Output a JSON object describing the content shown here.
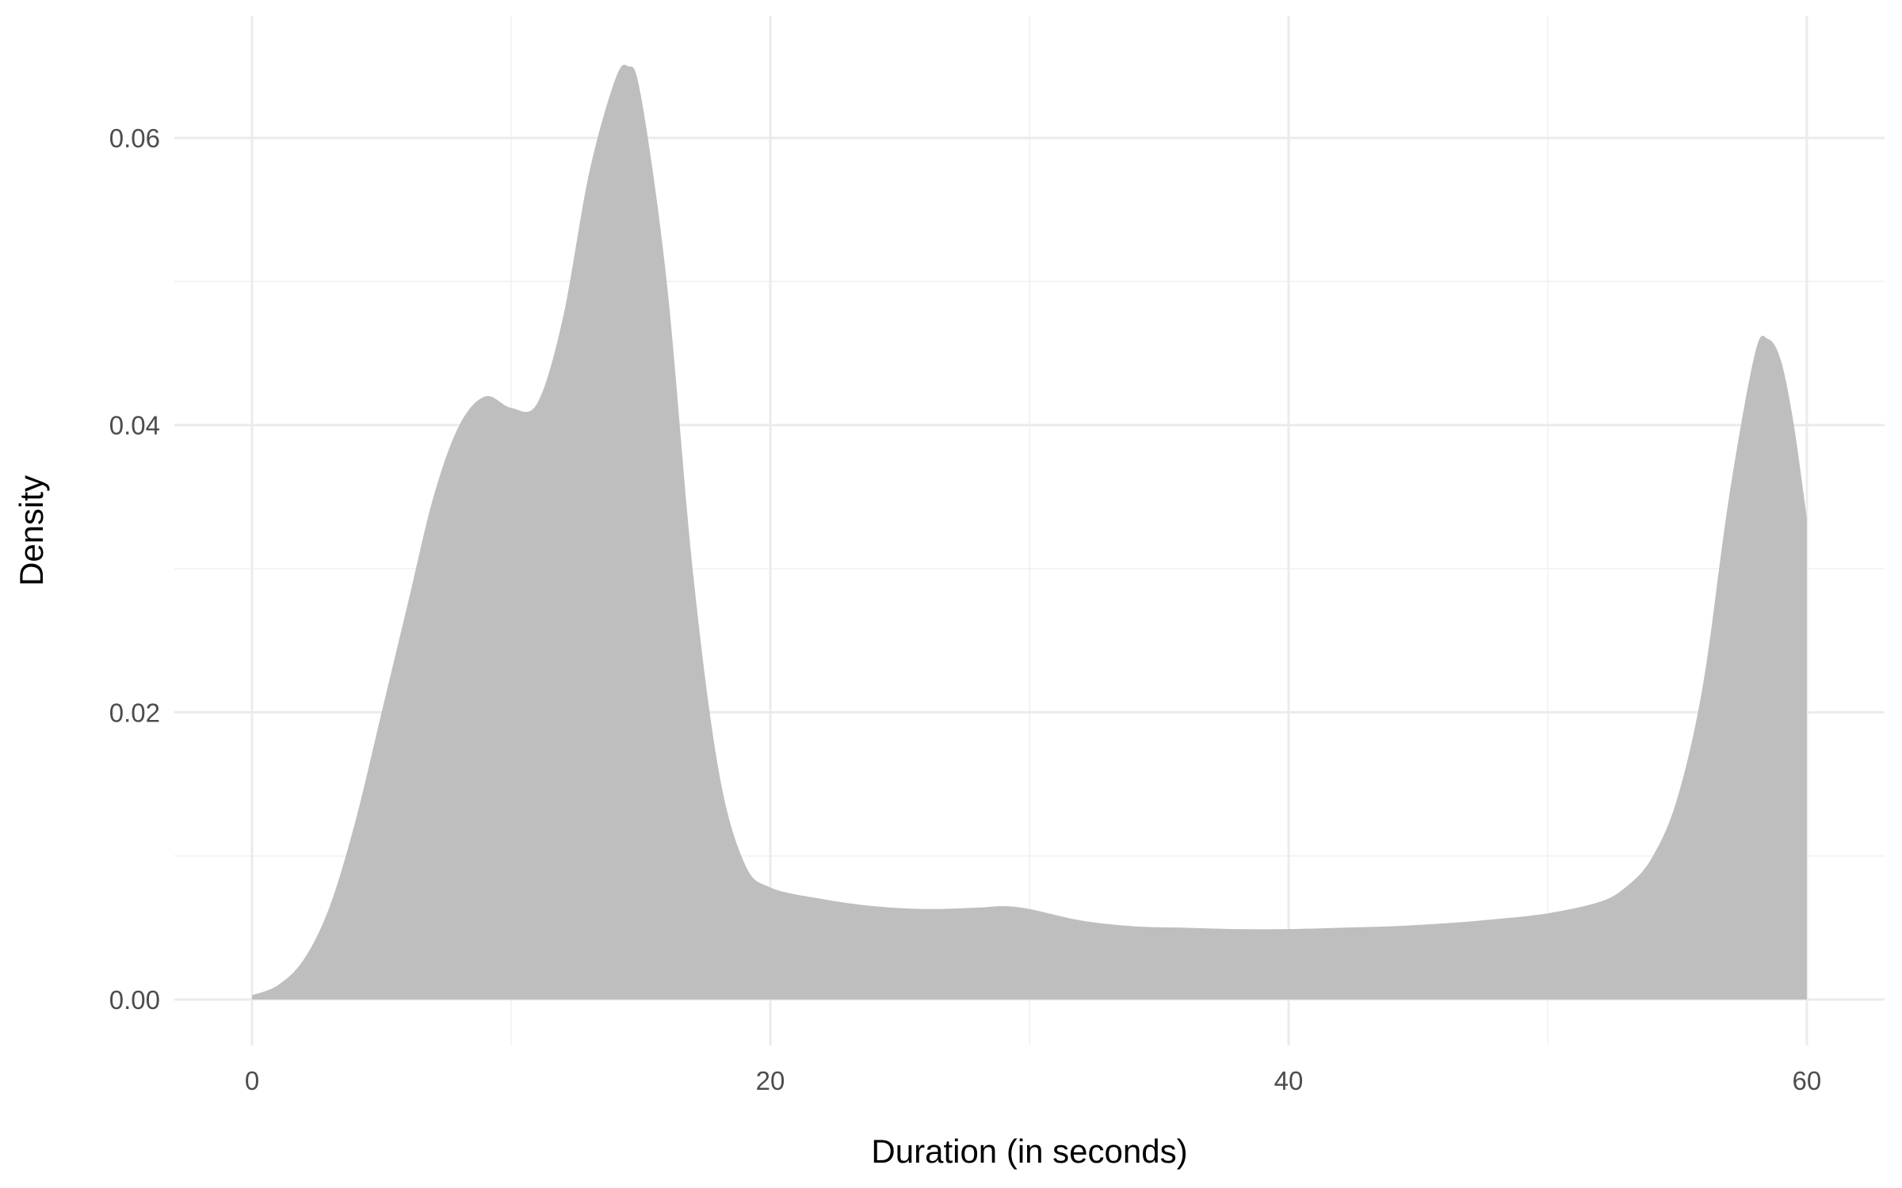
{
  "chart_data": {
    "type": "area",
    "title": "",
    "xlabel": "Duration (in seconds)",
    "ylabel": "Density",
    "xlim": [
      -3,
      63
    ],
    "ylim": [
      -0.0032,
      0.0685
    ],
    "x_ticks": [
      0,
      20,
      40,
      60
    ],
    "x_tick_labels": [
      "0",
      "20",
      "40",
      "60"
    ],
    "y_ticks": [
      0,
      0.02,
      0.04,
      0.06
    ],
    "y_tick_labels": [
      "0.00",
      "0.02",
      "0.04",
      "0.06"
    ],
    "grid": true,
    "legend": "none",
    "fill_color": "#bebebe",
    "series": [
      {
        "x": [
          0,
          1,
          2,
          3,
          4,
          5,
          6,
          7,
          8,
          9,
          10,
          11,
          12,
          13,
          14,
          14.5,
          15,
          16,
          17,
          18,
          19,
          20,
          22,
          24,
          26,
          28,
          29,
          30,
          32,
          34,
          36,
          38,
          40,
          42,
          44,
          46,
          48,
          50,
          52,
          53,
          54,
          55,
          56,
          57,
          58,
          58.5,
          59,
          59.5,
          60
        ],
        "y": [
          0.0003,
          0.001,
          0.0028,
          0.0065,
          0.0125,
          0.02,
          0.0275,
          0.035,
          0.04,
          0.042,
          0.0412,
          0.0415,
          0.0475,
          0.0575,
          0.064,
          0.065,
          0.063,
          0.05,
          0.03,
          0.016,
          0.0095,
          0.0078,
          0.007,
          0.0065,
          0.0063,
          0.0064,
          0.0065,
          0.0063,
          0.0055,
          0.0051,
          0.005,
          0.0049,
          0.0049,
          0.005,
          0.0051,
          0.0053,
          0.0056,
          0.006,
          0.0068,
          0.0078,
          0.0098,
          0.014,
          0.022,
          0.035,
          0.045,
          0.046,
          0.0445,
          0.04,
          0.0335
        ]
      }
    ]
  }
}
